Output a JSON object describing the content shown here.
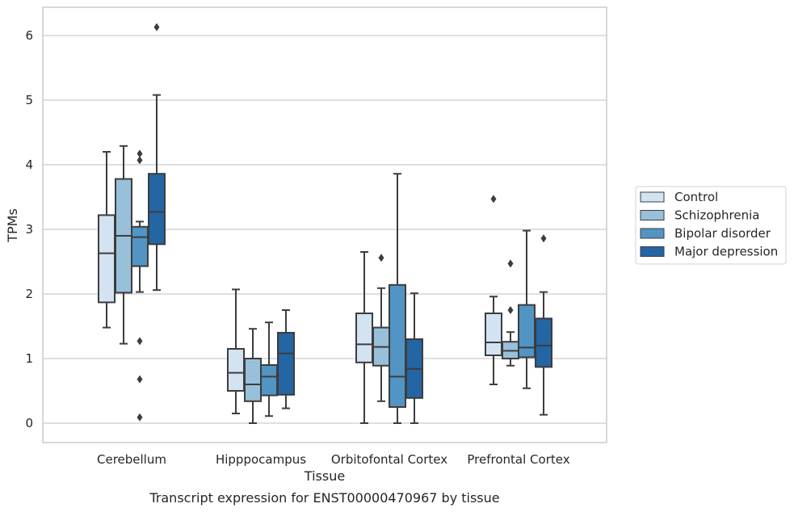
{
  "chart_data": {
    "type": "box",
    "title": "",
    "caption": "Transcript expression for ENST00000470967 by tissue",
    "xlabel": "Tissue",
    "ylabel": "TPMs",
    "ylim": [
      -0.3,
      6.45
    ],
    "yticks": [
      "0",
      "1",
      "2",
      "3",
      "4",
      "5",
      "6"
    ],
    "grid": true,
    "legend_position": "right",
    "categories": [
      "Cerebellum",
      "Hipppocampus",
      "Orbitofontal Cortex",
      "Prefrontal Cortex"
    ],
    "series": [
      {
        "name": "Control",
        "color": "#d3e3f2",
        "boxes": [
          {
            "whislo": 1.48,
            "q1": 1.87,
            "med": 2.63,
            "q3": 3.22,
            "whishi": 4.2,
            "fliers": []
          },
          {
            "whislo": 0.15,
            "q1": 0.5,
            "med": 0.78,
            "q3": 1.15,
            "whishi": 2.07,
            "fliers": []
          },
          {
            "whislo": 0.0,
            "q1": 0.94,
            "med": 1.22,
            "q3": 1.7,
            "whishi": 2.65,
            "fliers": []
          },
          {
            "whislo": 0.6,
            "q1": 1.05,
            "med": 1.25,
            "q3": 1.7,
            "whishi": 1.96,
            "fliers": [
              3.47
            ]
          }
        ]
      },
      {
        "name": "Schizophrenia",
        "color": "#98c0da",
        "boxes": [
          {
            "whislo": 1.23,
            "q1": 2.02,
            "med": 2.9,
            "q3": 3.78,
            "whishi": 4.29,
            "fliers": []
          },
          {
            "whislo": 0.0,
            "q1": 0.34,
            "med": 0.6,
            "q3": 1.0,
            "whishi": 1.46,
            "fliers": []
          },
          {
            "whislo": 0.34,
            "q1": 0.89,
            "med": 1.18,
            "q3": 1.48,
            "whishi": 2.09,
            "fliers": [
              2.56
            ]
          },
          {
            "whislo": 0.89,
            "q1": 1.0,
            "med": 1.12,
            "q3": 1.26,
            "whishi": 1.41,
            "fliers": [
              2.47,
              1.75
            ]
          }
        ]
      },
      {
        "name": "Bipolar disorder",
        "color": "#5294c4",
        "boxes": [
          {
            "whislo": 2.03,
            "q1": 2.43,
            "med": 2.88,
            "q3": 3.04,
            "whishi": 3.12,
            "fliers": [
              4.17,
              4.07,
              1.27,
              0.68,
              0.09
            ]
          },
          {
            "whislo": 0.11,
            "q1": 0.43,
            "med": 0.72,
            "q3": 0.9,
            "whishi": 1.56,
            "fliers": []
          },
          {
            "whislo": 0.0,
            "q1": 0.25,
            "med": 0.72,
            "q3": 2.14,
            "whishi": 3.86,
            "fliers": []
          },
          {
            "whislo": 0.54,
            "q1": 1.02,
            "med": 1.17,
            "q3": 1.83,
            "whishi": 2.98,
            "fliers": []
          }
        ]
      },
      {
        "name": "Major depression",
        "color": "#2465a4",
        "boxes": [
          {
            "whislo": 2.06,
            "q1": 2.77,
            "med": 3.27,
            "q3": 3.86,
            "whishi": 5.08,
            "fliers": [
              6.13
            ]
          },
          {
            "whislo": 0.23,
            "q1": 0.44,
            "med": 1.08,
            "q3": 1.4,
            "whishi": 1.75,
            "fliers": []
          },
          {
            "whislo": 0.0,
            "q1": 0.39,
            "med": 0.84,
            "q3": 1.3,
            "whishi": 2.01,
            "fliers": []
          },
          {
            "whislo": 0.13,
            "q1": 0.87,
            "med": 1.2,
            "q3": 1.62,
            "whishi": 2.03,
            "fliers": [
              2.86
            ]
          }
        ]
      }
    ]
  }
}
